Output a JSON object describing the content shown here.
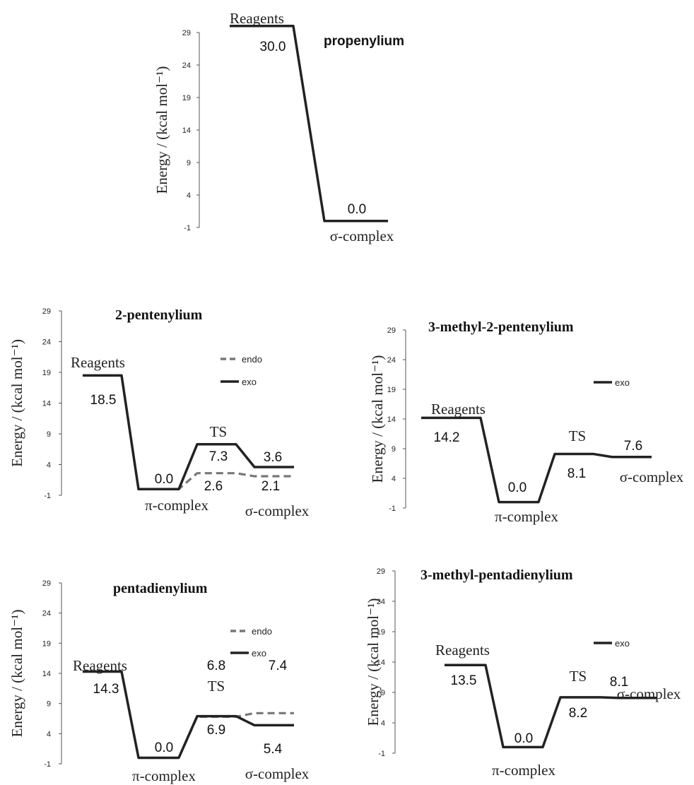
{
  "chart_data": [
    {
      "type": "line",
      "title": "propenylium",
      "ylabel": "Energy / (kcal mol⁻¹)",
      "yticks": [
        "29",
        "24",
        "19",
        "14",
        "9",
        "4",
        "-1"
      ],
      "ylim": [
        -1,
        29
      ],
      "series": [
        {
          "name": "",
          "color": "#222222",
          "dashed": false,
          "points": [
            {
              "stage": "Reagents",
              "energy": 30.0,
              "label": "30.0"
            },
            {
              "stage": "σ-complex",
              "energy": 0.0,
              "label": "0.0"
            }
          ]
        }
      ],
      "stage_labels": [
        "Reagents",
        "σ-complex"
      ]
    },
    {
      "type": "line",
      "title": "2-pentenylium",
      "ylabel": "Energy / (kcal mol⁻¹)",
      "yticks": [
        "29",
        "24",
        "19",
        "14",
        "9",
        "4",
        "-1"
      ],
      "ylim": [
        -1,
        29
      ],
      "legend": [
        {
          "name": "endo",
          "color": "#777777",
          "dashed": true
        },
        {
          "name": "exo",
          "color": "#222222",
          "dashed": false
        }
      ],
      "series": [
        {
          "name": "endo",
          "color": "#777777",
          "dashed": true,
          "points": [
            {
              "stage": "Reagents",
              "energy": 18.5
            },
            {
              "stage": "π-complex",
              "energy": 0.0
            },
            {
              "stage": "TS",
              "energy": 2.6,
              "label": "2.6"
            },
            {
              "stage": "σ-complex",
              "energy": 2.1,
              "label": "2.1"
            }
          ]
        },
        {
          "name": "exo",
          "color": "#222222",
          "dashed": false,
          "points": [
            {
              "stage": "Reagents",
              "energy": 18.5,
              "label": "18.5"
            },
            {
              "stage": "π-complex",
              "energy": 0.0,
              "label": "0.0"
            },
            {
              "stage": "TS",
              "energy": 7.3,
              "label": "7.3"
            },
            {
              "stage": "σ-complex",
              "energy": 3.6,
              "label": "3.6"
            }
          ]
        }
      ],
      "stage_labels": [
        "Reagents",
        "π-complex",
        "TS",
        "σ-complex"
      ]
    },
    {
      "type": "line",
      "title": "3-methyl-2-pentenylium",
      "ylabel": "Energy / (kcal mol⁻¹)",
      "yticks": [
        "29",
        "24",
        "19",
        "14",
        "9",
        "4",
        "-1"
      ],
      "ylim": [
        -1,
        29
      ],
      "legend": [
        {
          "name": "exo",
          "color": "#222222",
          "dashed": false
        }
      ],
      "series": [
        {
          "name": "exo",
          "color": "#222222",
          "dashed": false,
          "points": [
            {
              "stage": "Reagents",
              "energy": 14.2,
              "label": "14.2"
            },
            {
              "stage": "π-complex",
              "energy": 0.0,
              "label": "0.0"
            },
            {
              "stage": "TS",
              "energy": 8.1,
              "label": "8.1"
            },
            {
              "stage": "σ-complex",
              "energy": 7.6,
              "label": "7.6"
            }
          ]
        }
      ],
      "stage_labels": [
        "Reagents",
        "π-complex",
        "TS",
        "σ-complex"
      ]
    },
    {
      "type": "line",
      "title": "pentadienylium",
      "ylabel": "Energy / (kcal mol⁻¹)",
      "yticks": [
        "29",
        "24",
        "19",
        "14",
        "9",
        "4",
        "-1"
      ],
      "ylim": [
        -1,
        29
      ],
      "legend": [
        {
          "name": "endo",
          "color": "#777777",
          "dashed": true
        },
        {
          "name": "exo",
          "color": "#222222",
          "dashed": false
        }
      ],
      "series": [
        {
          "name": "endo",
          "color": "#777777",
          "dashed": true,
          "points": [
            {
              "stage": "Reagents",
              "energy": 14.3
            },
            {
              "stage": "π-complex",
              "energy": 0.0
            },
            {
              "stage": "TS",
              "energy": 6.8,
              "label": "6.8"
            },
            {
              "stage": "σ-complex",
              "energy": 7.4,
              "label": "7.4"
            }
          ]
        },
        {
          "name": "exo",
          "color": "#222222",
          "dashed": false,
          "points": [
            {
              "stage": "Reagents",
              "energy": 14.3,
              "label": "14.3"
            },
            {
              "stage": "π-complex",
              "energy": 0.0,
              "label": "0.0"
            },
            {
              "stage": "TS",
              "energy": 6.9,
              "label": "6.9"
            },
            {
              "stage": "σ-complex",
              "energy": 5.4,
              "label": "5.4"
            }
          ]
        }
      ],
      "stage_labels": [
        "Reagents",
        "π-complex",
        "TS",
        "σ-complex"
      ]
    },
    {
      "type": "line",
      "title": "3-methyl-pentadienylium",
      "ylabel": "Energy / (kcal mol⁻¹)",
      "yticks": [
        "29",
        "24",
        "19",
        "14",
        "9",
        "4",
        "-1"
      ],
      "ylim": [
        -1,
        29
      ],
      "legend": [
        {
          "name": "exo",
          "color": "#222222",
          "dashed": false
        }
      ],
      "series": [
        {
          "name": "exo",
          "color": "#222222",
          "dashed": false,
          "points": [
            {
              "stage": "Reagents",
              "energy": 13.5,
              "label": "13.5"
            },
            {
              "stage": "π-complex",
              "energy": 0.0,
              "label": "0.0"
            },
            {
              "stage": "TS",
              "energy": 8.2,
              "label": "8.2"
            },
            {
              "stage": "σ-complex",
              "energy": 8.1,
              "label": "8.1"
            }
          ]
        }
      ],
      "stage_labels": [
        "Reagents",
        "π-complex",
        "TS",
        "σ-complex"
      ]
    }
  ]
}
